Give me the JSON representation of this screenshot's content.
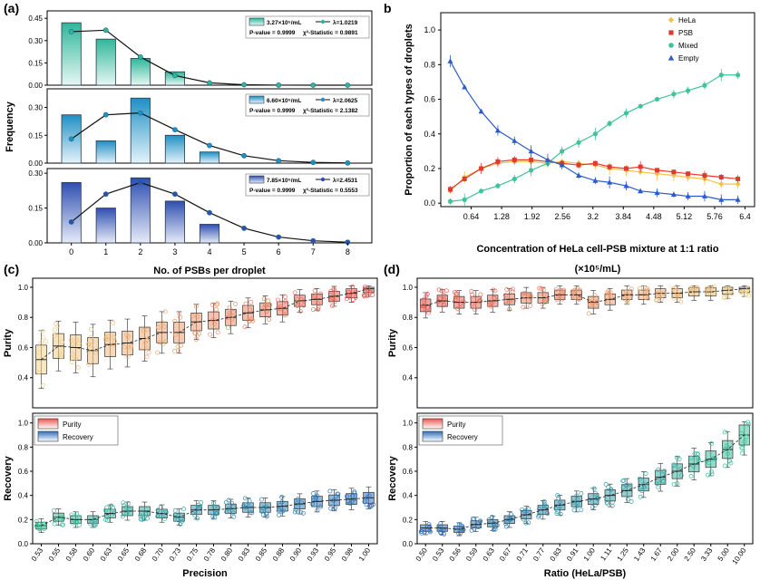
{
  "panel_labels": [
    "(a)",
    "b",
    "(c)",
    "(d)"
  ],
  "chart_data": [
    {
      "type": "bar",
      "panel": "a",
      "xlabel": "No. of PSBs per droplet",
      "ylabel": "Frequency",
      "categories": [
        "0",
        "1",
        "2",
        "3",
        "4",
        "5",
        "6",
        "7",
        "8"
      ],
      "subplots": [
        {
          "concentration": "3.27×10⁵/mL",
          "lambda_label": "λ=1.0219",
          "pvalue": "P-value = 0.9999",
          "chi": "χ²-Statistic = 0.9891",
          "color_top": "#2fb79a",
          "color_bottom": "#e6f7f3",
          "ylim": [
            0,
            0.5
          ],
          "yticks": [
            "0.00",
            "0.15",
            "0.30",
            "0.45"
          ],
          "ytick_values": [
            0,
            0.15,
            0.3,
            0.45
          ],
          "bars": [
            0.42,
            0.31,
            0.18,
            0.09,
            0,
            0,
            0,
            0,
            0
          ],
          "fit": [
            0.36,
            0.37,
            0.19,
            0.065,
            0.016,
            0.003,
            0.0005,
            0,
            0
          ]
        },
        {
          "concentration": "6.60×10⁵/mL",
          "lambda_label": "λ=2.0625",
          "pvalue": "P-value = 0.9999",
          "chi": "χ²-Statistic = 2.1382",
          "color_top": "#1f8fc4",
          "color_bottom": "#e4f3fa",
          "ylim": [
            0,
            0.4
          ],
          "yticks": [
            "0.00",
            "0.15",
            "0.30"
          ],
          "ytick_values": [
            0,
            0.15,
            0.3
          ],
          "bars": [
            0.26,
            0.12,
            0.35,
            0.15,
            0.06,
            0,
            0,
            0,
            0
          ],
          "fit": [
            0.13,
            0.26,
            0.27,
            0.18,
            0.095,
            0.04,
            0.013,
            0.004,
            0.001
          ]
        },
        {
          "concentration": "7.85×10⁵/mL",
          "lambda_label": "λ=2.4531",
          "pvalue": "P-value = 0.9999",
          "chi": "χ²-Statistic = 0.5553",
          "color_top": "#2e4fb0",
          "color_bottom": "#e6ebf8",
          "ylim": [
            0,
            0.32
          ],
          "yticks": [
            "0.00",
            "0.15",
            "0.30"
          ],
          "ytick_values": [
            0,
            0.15,
            0.3
          ],
          "bars": [
            0.26,
            0.15,
            0.28,
            0.18,
            0.08,
            0,
            0,
            0,
            0
          ],
          "fit": [
            0.09,
            0.21,
            0.26,
            0.21,
            0.13,
            0.063,
            0.025,
            0.009,
            0.003
          ]
        }
      ]
    },
    {
      "type": "line",
      "panel": "b",
      "ylabel": "Proportion of each types of droplets",
      "xlabel": "Concentration of HeLa cell-PSB mixture at 1:1 ratio",
      "xlabel2": "(×10⁵/mL)",
      "xticks": [
        "0.64",
        "1.28",
        "1.92",
        "2.56",
        "3.2",
        "3.84",
        "4.48",
        "5.12",
        "5.76",
        "6.4"
      ],
      "ytick_labels": [
        "0.0",
        "0.2",
        "0.4",
        "0.6",
        "0.8",
        "1.0"
      ],
      "ytick_values": [
        0,
        0.2,
        0.4,
        0.6,
        0.8,
        1.0
      ],
      "xlim": [
        0,
        6.6
      ],
      "ylim": [
        -0.02,
        1.1
      ],
      "x": [
        0.2,
        0.5,
        0.85,
        1.2,
        1.55,
        1.9,
        2.25,
        2.55,
        2.9,
        3.25,
        3.55,
        3.9,
        4.2,
        4.55,
        4.9,
        5.2,
        5.55,
        5.9,
        6.25
      ],
      "series": [
        {
          "name": "HeLa",
          "color": "#f0c247",
          "marker": "diamond",
          "values": [
            0.07,
            0.15,
            0.2,
            0.23,
            0.24,
            0.24,
            0.23,
            0.24,
            0.23,
            0.22,
            0.2,
            0.19,
            0.18,
            0.17,
            0.16,
            0.15,
            0.14,
            0.11,
            0.11
          ]
        },
        {
          "name": "PSB",
          "color": "#e03a2e",
          "marker": "square",
          "values": [
            0.08,
            0.14,
            0.2,
            0.24,
            0.25,
            0.25,
            0.24,
            0.23,
            0.22,
            0.23,
            0.21,
            0.2,
            0.21,
            0.19,
            0.18,
            0.17,
            0.16,
            0.15,
            0.14
          ]
        },
        {
          "name": "Mixed",
          "color": "#3fc49a",
          "marker": "circle",
          "values": [
            0.01,
            0.02,
            0.07,
            0.1,
            0.14,
            0.19,
            0.23,
            0.3,
            0.35,
            0.4,
            0.46,
            0.52,
            0.56,
            0.6,
            0.63,
            0.65,
            0.68,
            0.74,
            0.74
          ]
        },
        {
          "name": "Empty",
          "color": "#2b5bc8",
          "marker": "triangle",
          "values": [
            0.82,
            0.67,
            0.53,
            0.42,
            0.36,
            0.3,
            0.25,
            0.22,
            0.16,
            0.13,
            0.12,
            0.1,
            0.07,
            0.06,
            0.05,
            0.04,
            0.04,
            0.02,
            0.02
          ]
        }
      ]
    },
    {
      "type": "box",
      "panel": "c",
      "xlabel": "Precision",
      "categories": [
        "0.53",
        "0.55",
        "0.58",
        "0.60",
        "0.63",
        "0.65",
        "0.68",
        "0.70",
        "0.73",
        "0.75",
        "0.78",
        "0.80",
        "0.83",
        "0.85",
        "0.88",
        "0.90",
        "0.93",
        "0.95",
        "0.98",
        "1.00"
      ],
      "legend": [
        {
          "name": "Purity",
          "color": "#e8584e"
        },
        {
          "name": "Recovery",
          "color": "#2f6fbf"
        }
      ],
      "purity": {
        "ylabel": "Purity",
        "ylim": [
          0.2,
          1.06
        ],
        "ytick_labels": [
          "0.4",
          "0.6",
          "0.8",
          "1.0"
        ],
        "ytick_values": [
          0.4,
          0.6,
          0.8,
          1.0
        ],
        "medians": [
          0.52,
          0.61,
          0.6,
          0.58,
          0.62,
          0.63,
          0.66,
          0.7,
          0.7,
          0.77,
          0.78,
          0.8,
          0.83,
          0.85,
          0.86,
          0.91,
          0.92,
          0.94,
          0.96,
          0.99
        ],
        "color_low": "#f1d38a",
        "color_high": "#e8584e"
      },
      "recovery": {
        "ylabel": "Recovery",
        "ylim": [
          0.0,
          1.08
        ],
        "ytick_labels": [
          "0.0",
          "0.2",
          "0.4",
          "0.6",
          "0.8",
          "1.0"
        ],
        "ytick_values": [
          0,
          0.2,
          0.4,
          0.6,
          0.8,
          1.0
        ],
        "medians": [
          0.15,
          0.22,
          0.2,
          0.2,
          0.25,
          0.27,
          0.27,
          0.25,
          0.22,
          0.28,
          0.28,
          0.29,
          0.3,
          0.3,
          0.31,
          0.33,
          0.35,
          0.36,
          0.37,
          0.38
        ],
        "color_low": "#3fc49a",
        "color_high": "#2f6fbf"
      }
    },
    {
      "type": "box",
      "panel": "d",
      "xlabel": "Ratio (HeLa/PSB)",
      "categories": [
        "0.50",
        "0.53",
        "0.56",
        "0.59",
        "0.63",
        "0.67",
        "0.71",
        "0.77",
        "0.83",
        "0.91",
        "1.00",
        "1.11",
        "1.25",
        "1.43",
        "1.67",
        "2.00",
        "2.50",
        "3.33",
        "5.00",
        "10.00"
      ],
      "legend": [
        {
          "name": "Purity",
          "color": "#e8584e"
        },
        {
          "name": "Recovery",
          "color": "#2f6fbf"
        }
      ],
      "purity": {
        "ylabel": "Purity",
        "ylim": [
          0.2,
          1.06
        ],
        "ytick_labels": [
          "0.4",
          "0.6",
          "0.8",
          "1.0"
        ],
        "ytick_values": [
          0.4,
          0.6,
          0.8,
          1.0
        ],
        "medians": [
          0.88,
          0.91,
          0.9,
          0.9,
          0.91,
          0.92,
          0.93,
          0.93,
          0.95,
          0.95,
          0.9,
          0.92,
          0.95,
          0.95,
          0.96,
          0.96,
          0.97,
          0.97,
          0.98,
          0.99
        ],
        "color_low": "#e8584e",
        "color_high": "#f1d38a"
      },
      "recovery": {
        "ylabel": "Recovery",
        "ylim": [
          0.0,
          1.08
        ],
        "ytick_labels": [
          "0.0",
          "0.2",
          "0.4",
          "0.6",
          "0.8",
          "1.0"
        ],
        "ytick_values": [
          0,
          0.2,
          0.4,
          0.6,
          0.8,
          1.0
        ],
        "medians": [
          0.13,
          0.13,
          0.12,
          0.16,
          0.17,
          0.2,
          0.24,
          0.28,
          0.32,
          0.35,
          0.37,
          0.4,
          0.44,
          0.49,
          0.55,
          0.6,
          0.66,
          0.7,
          0.78,
          0.9
        ],
        "color_low": "#2f6fbf",
        "color_high": "#3fc49a"
      }
    }
  ]
}
